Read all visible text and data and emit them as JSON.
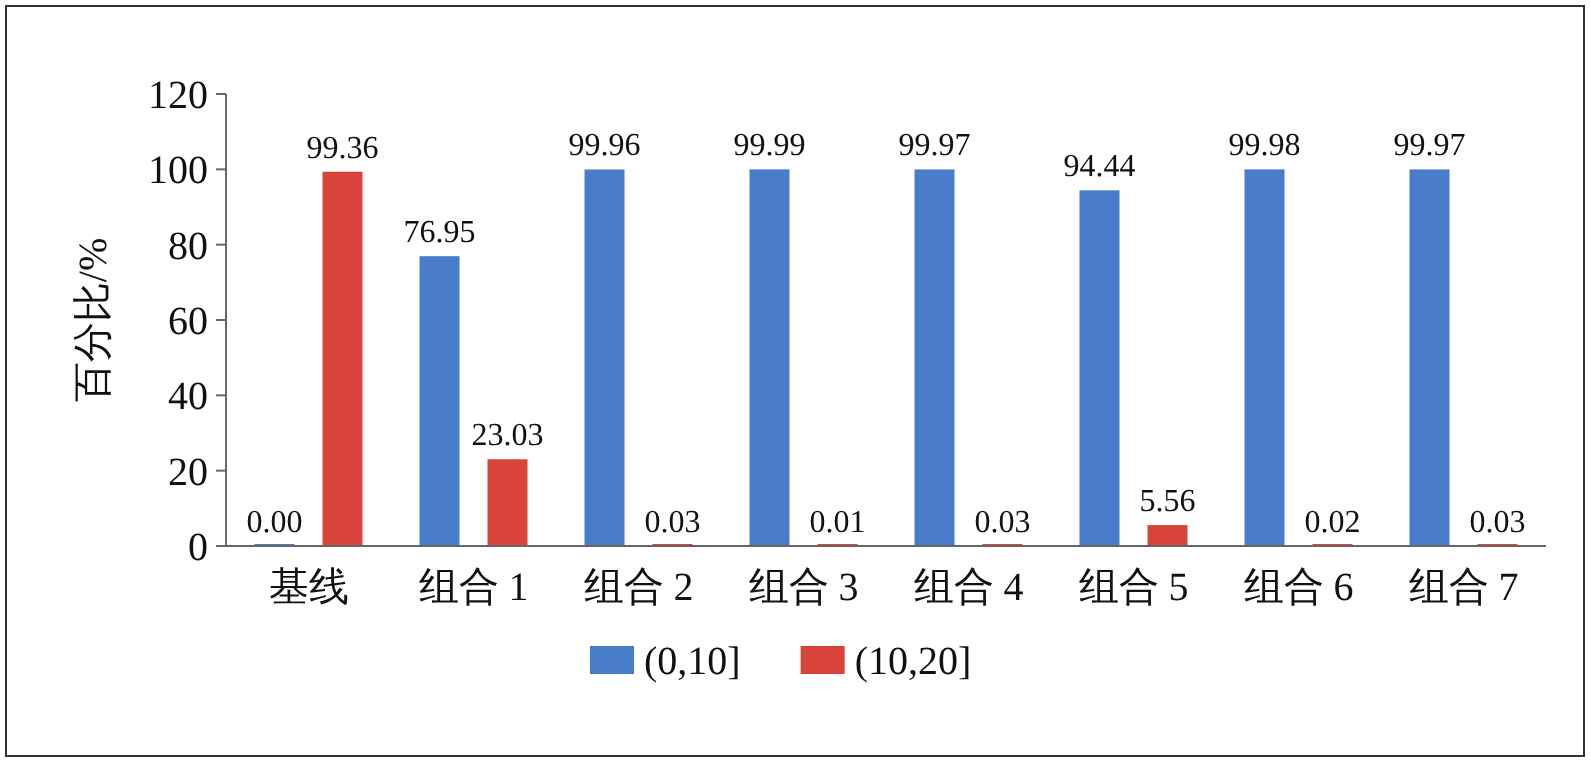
{
  "chart_data": {
    "type": "bar",
    "ylabel": "百分比/%",
    "categories": [
      "基线",
      "组合 1",
      "组合 2",
      "组合 3",
      "组合 4",
      "组合 5",
      "组合 6",
      "组合 7"
    ],
    "series": [
      {
        "name": "(0,10]",
        "color": "#4a7ccc",
        "values": [
          0.0,
          76.95,
          99.96,
          99.99,
          99.97,
          94.44,
          99.98,
          99.97
        ],
        "value_labels": [
          "0.00",
          "76.95",
          "99.96",
          "99.99",
          "99.97",
          "94.44",
          "99.98",
          "99.97"
        ]
      },
      {
        "name": "(10,20]",
        "color": "#d8443a",
        "values": [
          99.36,
          23.03,
          0.03,
          0.01,
          0.03,
          5.56,
          0.02,
          0.03
        ],
        "value_labels": [
          "99.36",
          "23.03",
          "0.03",
          "0.01",
          "0.03",
          "5.56",
          "0.02",
          "0.03"
        ]
      }
    ],
    "ylim": [
      0,
      120
    ],
    "yticks": [
      0,
      20,
      40,
      60,
      80,
      100,
      120
    ],
    "legend": "bottom",
    "data_labels": true
  }
}
